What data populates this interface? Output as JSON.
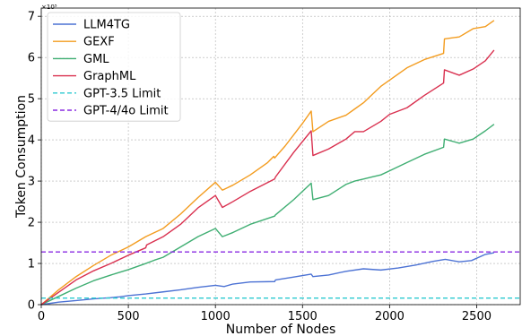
{
  "chart_data": {
    "type": "line",
    "title": "",
    "xlabel": "Number of Nodes",
    "ylabel": "Token Consumption",
    "y_scale_label": "×10⁵",
    "xlim": [
      0,
      2750
    ],
    "ylim": [
      0,
      7.2
    ],
    "xticks": [
      0,
      500,
      1000,
      1500,
      2000,
      2500
    ],
    "xtick_labels": [
      "0",
      "500",
      "1000",
      "1500",
      "2000",
      "2500"
    ],
    "yticks": [
      0,
      1,
      2,
      3,
      4,
      5,
      6,
      7
    ],
    "ytick_labels": [
      "0",
      "1",
      "2",
      "3",
      "4",
      "5",
      "6",
      "7"
    ],
    "grid": true,
    "legend_position": "top-left",
    "series": [
      {
        "name": "LLM4TG",
        "color": "#4c72d4",
        "style": "solid",
        "x": [
          0,
          50,
          100,
          200,
          300,
          400,
          450,
          500,
          600,
          700,
          800,
          900,
          1000,
          1050,
          1100,
          1200,
          1340,
          1345,
          1450,
          1550,
          1560,
          1650,
          1750,
          1850,
          1950,
          2050,
          2150,
          2250,
          2320,
          2400,
          2470,
          2550,
          2600
        ],
        "y": [
          0.0,
          0.03,
          0.06,
          0.1,
          0.14,
          0.17,
          0.19,
          0.22,
          0.26,
          0.31,
          0.36,
          0.42,
          0.47,
          0.44,
          0.5,
          0.55,
          0.56,
          0.6,
          0.67,
          0.74,
          0.68,
          0.72,
          0.81,
          0.87,
          0.84,
          0.89,
          0.96,
          1.05,
          1.1,
          1.04,
          1.07,
          1.22,
          1.26
        ]
      },
      {
        "name": "GEXF",
        "color": "#f39c1f",
        "style": "solid",
        "x": [
          0,
          100,
          200,
          300,
          400,
          500,
          600,
          700,
          800,
          900,
          1000,
          1040,
          1100,
          1200,
          1300,
          1335,
          1340,
          1400,
          1500,
          1550,
          1560,
          1650,
          1750,
          1800,
          1850,
          1900,
          1950,
          2000,
          2100,
          2200,
          2310,
          2315,
          2400,
          2480,
          2550,
          2600
        ],
        "y": [
          0.0,
          0.36,
          0.68,
          0.95,
          1.2,
          1.4,
          1.65,
          1.85,
          2.2,
          2.6,
          2.97,
          2.78,
          2.9,
          3.15,
          3.45,
          3.6,
          3.56,
          3.85,
          4.4,
          4.7,
          4.2,
          4.45,
          4.6,
          4.75,
          4.9,
          5.1,
          5.3,
          5.45,
          5.75,
          5.95,
          6.1,
          6.45,
          6.5,
          6.7,
          6.75,
          6.9
        ]
      },
      {
        "name": "GML",
        "color": "#3fae72",
        "style": "solid",
        "x": [
          0,
          100,
          200,
          300,
          400,
          500,
          600,
          650,
          700,
          800,
          900,
          1000,
          1040,
          1100,
          1200,
          1340,
          1345,
          1450,
          1550,
          1560,
          1650,
          1750,
          1800,
          1850,
          1900,
          1950,
          2000,
          2100,
          2200,
          2310,
          2315,
          2400,
          2480,
          2550,
          2600
        ],
        "y": [
          0.0,
          0.2,
          0.4,
          0.58,
          0.72,
          0.85,
          1.0,
          1.08,
          1.15,
          1.4,
          1.65,
          1.85,
          1.65,
          1.75,
          1.95,
          2.15,
          2.18,
          2.55,
          2.95,
          2.55,
          2.65,
          2.92,
          3.0,
          3.05,
          3.1,
          3.15,
          3.25,
          3.45,
          3.65,
          3.82,
          4.02,
          3.92,
          4.02,
          4.22,
          4.38
        ]
      },
      {
        "name": "GraphML",
        "color": "#d9304f",
        "style": "solid",
        "x": [
          0,
          100,
          200,
          300,
          400,
          500,
          600,
          605,
          700,
          800,
          900,
          1000,
          1040,
          1100,
          1200,
          1340,
          1345,
          1450,
          1550,
          1560,
          1650,
          1750,
          1800,
          1850,
          1950,
          2000,
          2100,
          2200,
          2310,
          2315,
          2400,
          2480,
          2550,
          2600
        ],
        "y": [
          0.0,
          0.3,
          0.6,
          0.82,
          1.0,
          1.2,
          1.38,
          1.45,
          1.65,
          1.95,
          2.35,
          2.65,
          2.36,
          2.5,
          2.75,
          3.05,
          3.1,
          3.7,
          4.22,
          3.62,
          3.78,
          4.02,
          4.2,
          4.2,
          4.45,
          4.62,
          4.78,
          5.08,
          5.38,
          5.7,
          5.57,
          5.72,
          5.92,
          6.18
        ]
      },
      {
        "name": "GPT-3.5 Limit",
        "color": "#2ccad0",
        "style": "dashed",
        "x": [
          0,
          2750
        ],
        "y": [
          0.16,
          0.16
        ]
      },
      {
        "name": "GPT-4/4o Limit",
        "color": "#8a2be2",
        "style": "dashed",
        "x": [
          0,
          2750
        ],
        "y": [
          1.28,
          1.28
        ]
      }
    ]
  }
}
